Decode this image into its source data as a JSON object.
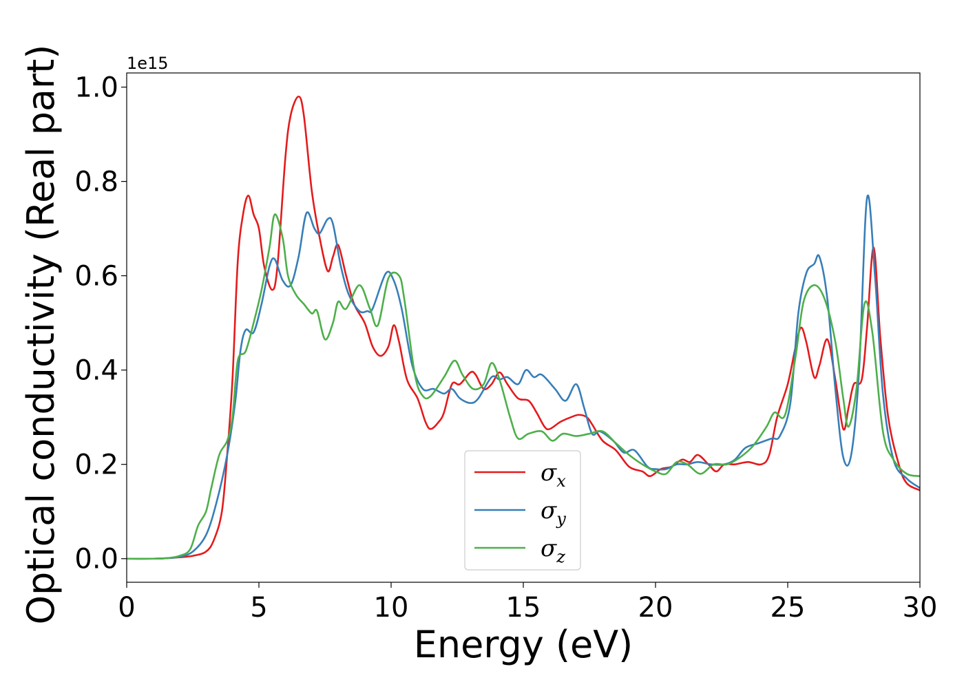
{
  "chart_data": {
    "type": "line",
    "xlabel": "Energy (eV)",
    "ylabel": "Optical conductivity (Real part)",
    "y_offset_label": "1e15",
    "xlim": [
      0,
      30
    ],
    "ylim": [
      -0.05,
      1.03
    ],
    "y_multiplier": 1000000000000000.0,
    "x_ticks": [
      0,
      5,
      10,
      15,
      20,
      25,
      30
    ],
    "x_tick_labels": [
      "0",
      "5",
      "10",
      "15",
      "20",
      "25",
      "30"
    ],
    "y_ticks": [
      0.0,
      0.2,
      0.4,
      0.6,
      0.8,
      1.0
    ],
    "y_tick_labels": [
      "0.0",
      "0.2",
      "0.4",
      "0.6",
      "0.8",
      "1.0"
    ],
    "grid": false,
    "legend_position": "bottom-center",
    "series": [
      {
        "name": "σ",
        "subscript": "x",
        "color": "#e41a1c",
        "points": [
          [
            0,
            0
          ],
          [
            1,
            0
          ],
          [
            1.5,
            0.001
          ],
          [
            2,
            0.003
          ],
          [
            2.5,
            0.006
          ],
          [
            3,
            0.015
          ],
          [
            3.3,
            0.04
          ],
          [
            3.6,
            0.1
          ],
          [
            3.8,
            0.22
          ],
          [
            4,
            0.38
          ],
          [
            4.2,
            0.63
          ],
          [
            4.4,
            0.73
          ],
          [
            4.6,
            0.77
          ],
          [
            4.8,
            0.73
          ],
          [
            5,
            0.7
          ],
          [
            5.2,
            0.62
          ],
          [
            5.5,
            0.57
          ],
          [
            5.7,
            0.62
          ],
          [
            6,
            0.85
          ],
          [
            6.2,
            0.94
          ],
          [
            6.5,
            0.98
          ],
          [
            6.7,
            0.94
          ],
          [
            7,
            0.78
          ],
          [
            7.3,
            0.68
          ],
          [
            7.6,
            0.61
          ],
          [
            7.8,
            0.64
          ],
          [
            8,
            0.665
          ],
          [
            8.3,
            0.6
          ],
          [
            8.6,
            0.54
          ],
          [
            9,
            0.5
          ],
          [
            9.3,
            0.45
          ],
          [
            9.6,
            0.43
          ],
          [
            9.9,
            0.45
          ],
          [
            10.1,
            0.495
          ],
          [
            10.3,
            0.46
          ],
          [
            10.6,
            0.38
          ],
          [
            11,
            0.34
          ],
          [
            11.3,
            0.29
          ],
          [
            11.5,
            0.275
          ],
          [
            11.8,
            0.29
          ],
          [
            12,
            0.31
          ],
          [
            12.3,
            0.37
          ],
          [
            12.6,
            0.37
          ],
          [
            13,
            0.395
          ],
          [
            13.2,
            0.39
          ],
          [
            13.5,
            0.36
          ],
          [
            13.8,
            0.37
          ],
          [
            14.1,
            0.395
          ],
          [
            14.4,
            0.37
          ],
          [
            14.8,
            0.34
          ],
          [
            15.2,
            0.335
          ],
          [
            15.5,
            0.31
          ],
          [
            15.8,
            0.28
          ],
          [
            16,
            0.275
          ],
          [
            16.4,
            0.29
          ],
          [
            16.8,
            0.3
          ],
          [
            17.1,
            0.305
          ],
          [
            17.4,
            0.3
          ],
          [
            17.6,
            0.285
          ],
          [
            18,
            0.25
          ],
          [
            18.5,
            0.23
          ],
          [
            19,
            0.195
          ],
          [
            19.5,
            0.185
          ],
          [
            19.8,
            0.175
          ],
          [
            20.2,
            0.19
          ],
          [
            20.6,
            0.195
          ],
          [
            21,
            0.21
          ],
          [
            21.3,
            0.205
          ],
          [
            21.6,
            0.22
          ],
          [
            22,
            0.2
          ],
          [
            22.3,
            0.185
          ],
          [
            22.6,
            0.2
          ],
          [
            23,
            0.2
          ],
          [
            23.5,
            0.205
          ],
          [
            24,
            0.2
          ],
          [
            24.3,
            0.22
          ],
          [
            24.6,
            0.3
          ],
          [
            25,
            0.37
          ],
          [
            25.3,
            0.45
          ],
          [
            25.5,
            0.49
          ],
          [
            25.7,
            0.46
          ],
          [
            26,
            0.385
          ],
          [
            26.2,
            0.41
          ],
          [
            26.5,
            0.465
          ],
          [
            26.8,
            0.38
          ],
          [
            27.1,
            0.275
          ],
          [
            27.3,
            0.32
          ],
          [
            27.5,
            0.37
          ],
          [
            27.8,
            0.38
          ],
          [
            28,
            0.49
          ],
          [
            28.25,
            0.66
          ],
          [
            28.5,
            0.47
          ],
          [
            28.8,
            0.3
          ],
          [
            29.2,
            0.2
          ],
          [
            29.5,
            0.16
          ],
          [
            30,
            0.145
          ]
        ]
      },
      {
        "name": "σ",
        "subscript": "y",
        "color": "#377eb8",
        "points": [
          [
            0,
            0
          ],
          [
            1,
            0
          ],
          [
            1.5,
            0.001
          ],
          [
            2,
            0.004
          ],
          [
            2.5,
            0.015
          ],
          [
            3,
            0.05
          ],
          [
            3.4,
            0.12
          ],
          [
            3.8,
            0.22
          ],
          [
            4.1,
            0.33
          ],
          [
            4.3,
            0.44
          ],
          [
            4.5,
            0.485
          ],
          [
            4.8,
            0.48
          ],
          [
            5.1,
            0.54
          ],
          [
            5.4,
            0.62
          ],
          [
            5.6,
            0.635
          ],
          [
            5.9,
            0.59
          ],
          [
            6.2,
            0.58
          ],
          [
            6.5,
            0.64
          ],
          [
            6.8,
            0.733
          ],
          [
            7.1,
            0.7
          ],
          [
            7.3,
            0.69
          ],
          [
            7.6,
            0.72
          ],
          [
            7.8,
            0.71
          ],
          [
            8.1,
            0.62
          ],
          [
            8.4,
            0.56
          ],
          [
            8.8,
            0.525
          ],
          [
            9.1,
            0.525
          ],
          [
            9.3,
            0.53
          ],
          [
            9.8,
            0.605
          ],
          [
            10.1,
            0.59
          ],
          [
            10.4,
            0.53
          ],
          [
            10.8,
            0.41
          ],
          [
            11.2,
            0.36
          ],
          [
            11.6,
            0.36
          ],
          [
            12,
            0.35
          ],
          [
            12.3,
            0.36
          ],
          [
            12.6,
            0.34
          ],
          [
            13,
            0.33
          ],
          [
            13.3,
            0.34
          ],
          [
            13.8,
            0.385
          ],
          [
            14.1,
            0.38
          ],
          [
            14.4,
            0.385
          ],
          [
            14.8,
            0.37
          ],
          [
            15.1,
            0.4
          ],
          [
            15.4,
            0.385
          ],
          [
            15.7,
            0.39
          ],
          [
            16.2,
            0.36
          ],
          [
            16.6,
            0.335
          ],
          [
            17,
            0.37
          ],
          [
            17.3,
            0.32
          ],
          [
            17.6,
            0.265
          ],
          [
            17.9,
            0.27
          ],
          [
            18.4,
            0.25
          ],
          [
            18.8,
            0.225
          ],
          [
            19.2,
            0.23
          ],
          [
            19.7,
            0.195
          ],
          [
            20,
            0.19
          ],
          [
            20.4,
            0.19
          ],
          [
            20.8,
            0.2
          ],
          [
            21.2,
            0.2
          ],
          [
            21.6,
            0.205
          ],
          [
            22.1,
            0.2
          ],
          [
            22.6,
            0.2
          ],
          [
            23,
            0.21
          ],
          [
            23.4,
            0.235
          ],
          [
            23.9,
            0.245
          ],
          [
            24.4,
            0.255
          ],
          [
            24.7,
            0.26
          ],
          [
            25.1,
            0.33
          ],
          [
            25.4,
            0.52
          ],
          [
            25.7,
            0.605
          ],
          [
            26,
            0.625
          ],
          [
            26.2,
            0.64
          ],
          [
            26.5,
            0.55
          ],
          [
            26.8,
            0.36
          ],
          [
            27.1,
            0.215
          ],
          [
            27.4,
            0.22
          ],
          [
            27.7,
            0.4
          ],
          [
            28,
            0.765
          ],
          [
            28.3,
            0.6
          ],
          [
            28.6,
            0.35
          ],
          [
            29,
            0.21
          ],
          [
            29.5,
            0.17
          ],
          [
            30,
            0.15
          ]
        ]
      },
      {
        "name": "σ",
        "subscript": "z",
        "color": "#4daf4a",
        "points": [
          [
            0,
            0
          ],
          [
            1,
            0
          ],
          [
            1.5,
            0.001
          ],
          [
            2,
            0.006
          ],
          [
            2.4,
            0.02
          ],
          [
            2.7,
            0.07
          ],
          [
            3,
            0.1
          ],
          [
            3.2,
            0.15
          ],
          [
            3.5,
            0.22
          ],
          [
            3.8,
            0.25
          ],
          [
            4,
            0.3
          ],
          [
            4.2,
            0.42
          ],
          [
            4.5,
            0.44
          ],
          [
            4.8,
            0.5
          ],
          [
            5.1,
            0.57
          ],
          [
            5.4,
            0.66
          ],
          [
            5.6,
            0.73
          ],
          [
            5.9,
            0.68
          ],
          [
            6.1,
            0.6
          ],
          [
            6.4,
            0.56
          ],
          [
            6.7,
            0.54
          ],
          [
            7,
            0.52
          ],
          [
            7.2,
            0.525
          ],
          [
            7.5,
            0.465
          ],
          [
            7.8,
            0.5
          ],
          [
            8,
            0.545
          ],
          [
            8.3,
            0.53
          ],
          [
            8.8,
            0.58
          ],
          [
            9.2,
            0.53
          ],
          [
            9.5,
            0.495
          ],
          [
            9.9,
            0.595
          ],
          [
            10.3,
            0.6
          ],
          [
            10.5,
            0.55
          ],
          [
            10.9,
            0.39
          ],
          [
            11.2,
            0.345
          ],
          [
            11.5,
            0.345
          ],
          [
            12,
            0.385
          ],
          [
            12.4,
            0.42
          ],
          [
            12.7,
            0.39
          ],
          [
            13.1,
            0.36
          ],
          [
            13.5,
            0.37
          ],
          [
            13.8,
            0.415
          ],
          [
            14.1,
            0.38
          ],
          [
            14.5,
            0.3
          ],
          [
            14.8,
            0.255
          ],
          [
            15.2,
            0.265
          ],
          [
            15.7,
            0.27
          ],
          [
            16.1,
            0.25
          ],
          [
            16.5,
            0.265
          ],
          [
            17,
            0.26
          ],
          [
            17.5,
            0.265
          ],
          [
            18,
            0.27
          ],
          [
            18.5,
            0.245
          ],
          [
            19,
            0.22
          ],
          [
            19.5,
            0.2
          ],
          [
            20,
            0.185
          ],
          [
            20.4,
            0.18
          ],
          [
            20.8,
            0.205
          ],
          [
            21.2,
            0.2
          ],
          [
            21.7,
            0.18
          ],
          [
            22.2,
            0.2
          ],
          [
            22.7,
            0.2
          ],
          [
            23.2,
            0.215
          ],
          [
            23.7,
            0.24
          ],
          [
            24.2,
            0.28
          ],
          [
            24.5,
            0.31
          ],
          [
            24.9,
            0.305
          ],
          [
            25.3,
            0.43
          ],
          [
            25.6,
            0.545
          ],
          [
            26,
            0.58
          ],
          [
            26.4,
            0.55
          ],
          [
            26.8,
            0.46
          ],
          [
            27.1,
            0.34
          ],
          [
            27.3,
            0.28
          ],
          [
            27.6,
            0.36
          ],
          [
            27.9,
            0.54
          ],
          [
            28.2,
            0.48
          ],
          [
            28.6,
            0.27
          ],
          [
            29,
            0.21
          ],
          [
            29.5,
            0.18
          ],
          [
            30,
            0.175
          ]
        ]
      }
    ]
  }
}
